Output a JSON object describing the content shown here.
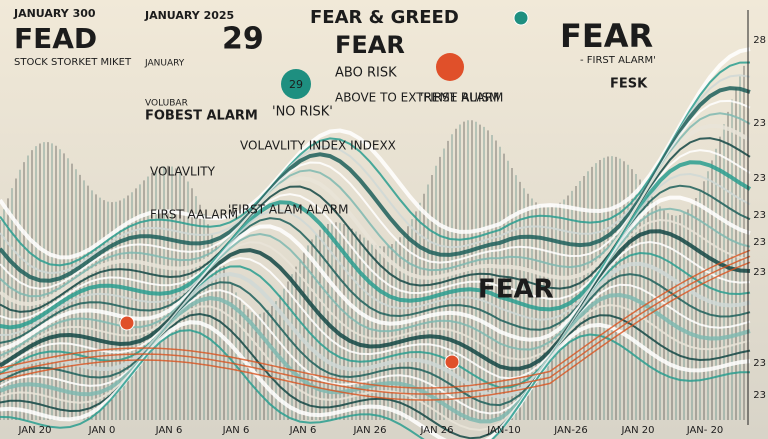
{
  "header": {
    "date_left": "JANUARY 300",
    "brand": "FEAD",
    "subtitle": "STOCK STORKET MIKET",
    "date_center": "JANUARY 2025",
    "score": "29",
    "title": "FEAR & GREED",
    "mood": "FEAR"
  },
  "labels": {
    "january_small": "JANUARY",
    "volubar": "VOLUBAR",
    "fobest_alarm": "FOBEST ALARM",
    "volavlity": "VOLAVLITY",
    "first_aalarm": "FIRST AALARM",
    "badge_score": "29",
    "abo_risk": "ABO RISK",
    "above_extreme": "ABOVE TO EXTREME ALARM",
    "no_risk": "'NO RISK'",
    "first_ruism": "'FIRST RUISM",
    "volatility_index": "VOLAVLITY INDEX INDEXX",
    "first_alam": "'FIRST ALAM ALARM",
    "fear_right": "FEAR",
    "first_alarm_right": "- FIRST ALARM'",
    "fesk": "FESK",
    "fear_chart": "FEAR"
  },
  "right_axis": [
    "28",
    "23",
    "23",
    "23",
    "23",
    "23",
    "23",
    "23"
  ],
  "bottom_axis": [
    "JAN 20",
    "JAN 0",
    "JAN 6",
    "JAN 6",
    "JAN 6",
    "JAN 26",
    "JAN 26",
    "JAN-10",
    "JAN-26",
    "JAN 20",
    "JAN- 20"
  ]
}
